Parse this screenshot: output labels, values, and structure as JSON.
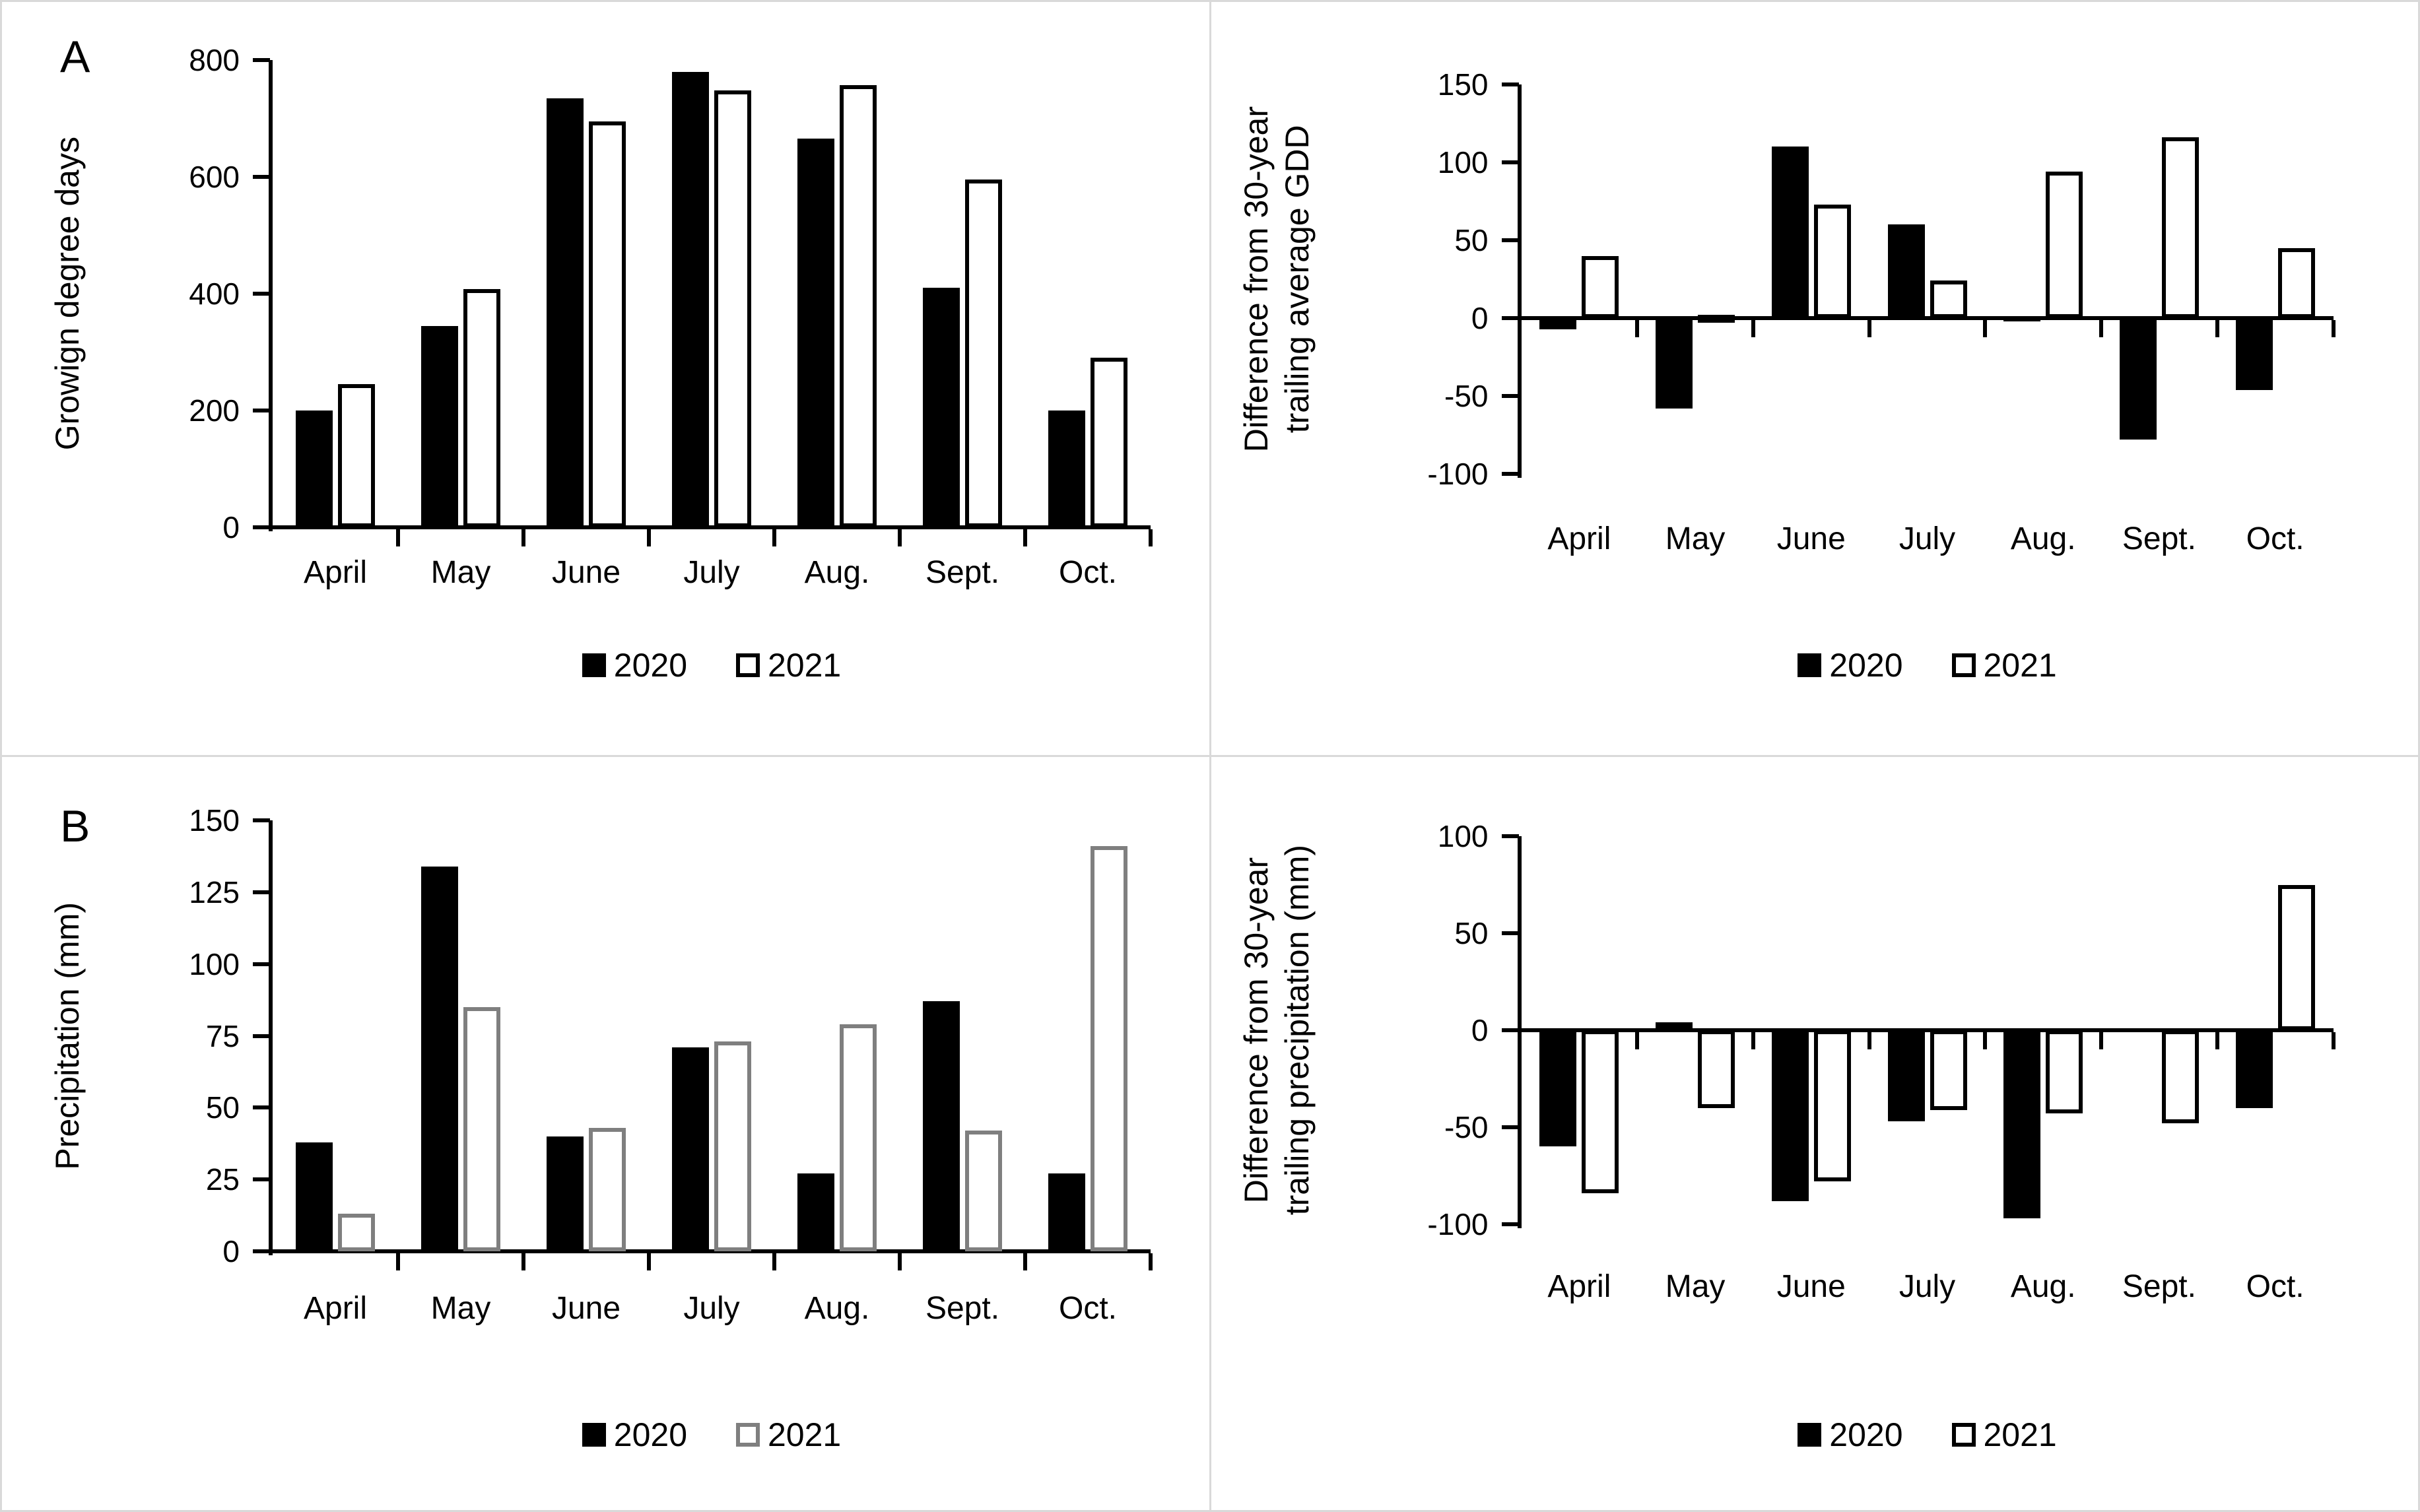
{
  "background_color": "#ffffff",
  "divider_color": "#d9d9d9",
  "bar_fill_2020": "#000000",
  "bar_fill_2021": "#ffffff",
  "chart_data": [
    {
      "type": "bar",
      "panel_label": "A",
      "ylabel_lines": [
        "Growign degree days"
      ],
      "categories": [
        "April",
        "May",
        "June",
        "July",
        "Aug.",
        "Sept.",
        "Oct."
      ],
      "ylim": [
        0,
        800
      ],
      "yticks": [
        0,
        200,
        400,
        600,
        800
      ],
      "grid": "off",
      "legend_position": "bottom",
      "series": [
        {
          "name": "2020",
          "fill": "#000000",
          "stroke": "#000000",
          "values": [
            200,
            345,
            735,
            780,
            665,
            410,
            200
          ]
        },
        {
          "name": "2021",
          "fill": "#ffffff",
          "stroke": "#000000",
          "values": [
            245,
            408,
            695,
            748,
            757,
            595,
            290
          ]
        }
      ]
    },
    {
      "type": "bar",
      "panel_label": "",
      "ylabel_lines": [
        "Difference from 30-year",
        "trailing average GDD"
      ],
      "categories": [
        "April",
        "May",
        "June",
        "July",
        "Aug.",
        "Sept.",
        "Oct."
      ],
      "ylim": [
        -100,
        150
      ],
      "yticks": [
        -100,
        -50,
        0,
        50,
        100,
        150
      ],
      "grid": "off",
      "legend_position": "bottom",
      "series": [
        {
          "name": "2020",
          "fill": "#000000",
          "stroke": "#000000",
          "values": [
            -7,
            -58,
            110,
            60,
            -2,
            -78,
            -46
          ]
        },
        {
          "name": "2021",
          "fill": "#ffffff",
          "stroke": "#000000",
          "values": [
            40,
            2,
            73,
            24,
            94,
            116,
            45
          ]
        }
      ]
    },
    {
      "type": "bar",
      "panel_label": "B",
      "ylabel_lines": [
        "Precipitation (mm)"
      ],
      "categories": [
        "April",
        "May",
        "June",
        "July",
        "Aug.",
        "Sept.",
        "Oct."
      ],
      "ylim": [
        0,
        150
      ],
      "yticks": [
        0,
        25,
        50,
        75,
        100,
        125,
        150
      ],
      "grid": "off",
      "legend_position": "bottom",
      "series": [
        {
          "name": "2020",
          "fill": "#000000",
          "stroke": "#000000",
          "values": [
            38,
            134,
            40,
            71,
            27,
            87,
            27
          ]
        },
        {
          "name": "2021",
          "fill": "#ffffff",
          "stroke": "#7f7f7f",
          "values": [
            13,
            85,
            43,
            73,
            79,
            42,
            141
          ]
        }
      ]
    },
    {
      "type": "bar",
      "panel_label": "",
      "ylabel_lines": [
        "Difference from 30-year",
        "trailing precipitation (mm)"
      ],
      "categories": [
        "April",
        "May",
        "June",
        "July",
        "Aug.",
        "Sept.",
        "Oct."
      ],
      "ylim": [
        -100,
        100
      ],
      "yticks": [
        -100,
        -50,
        0,
        50,
        100
      ],
      "grid": "off",
      "legend_position": "bottom",
      "series": [
        {
          "name": "2020",
          "fill": "#000000",
          "stroke": "#000000",
          "values": [
            -60,
            4,
            -88,
            -47,
            -97,
            0,
            -40
          ]
        },
        {
          "name": "2021",
          "fill": "#ffffff",
          "stroke": "#000000",
          "values": [
            -84,
            -40,
            -78,
            -41,
            -43,
            -48,
            75
          ]
        }
      ]
    }
  ]
}
